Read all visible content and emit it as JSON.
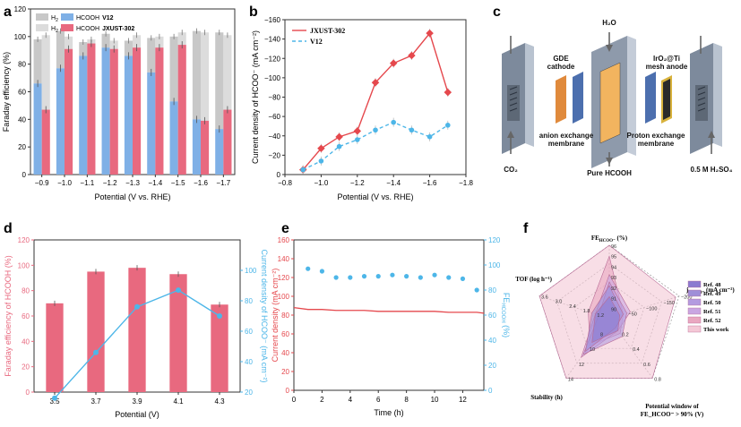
{
  "panels": {
    "a": {
      "letter": "a"
    },
    "b": {
      "letter": "b"
    },
    "c": {
      "letter": "c"
    },
    "d": {
      "letter": "d"
    },
    "e": {
      "letter": "e"
    },
    "f": {
      "letter": "f"
    }
  },
  "colors": {
    "pink": "#e8697f",
    "blue": "#7fb0e6",
    "gray": "#c8c8c8",
    "lightgray": "#dcdcdc",
    "red": "#e5484d",
    "sky": "#4db6e8",
    "purple": "#9c7fd8"
  },
  "chart_data": [
    {
      "panel": "a",
      "type": "bar",
      "xlabel": "Potential (V vs. RHE)",
      "ylabel": "Faraday efficiency (%)",
      "categories": [
        "−0.9",
        "−1.0",
        "−1.1",
        "−1.2",
        "−1.3",
        "−1.4",
        "−1.5",
        "−1.6",
        "−1.7"
      ],
      "ylim": [
        0,
        120
      ],
      "yticks": [
        "0",
        "20",
        "40",
        "60",
        "80",
        "100",
        "120"
      ],
      "legend": [
        {
          "prefix": "H",
          "sub": "2",
          "suffix": "",
          "bold": ""
        },
        {
          "prefix": "HCOOH",
          "sub": "",
          "suffix": "",
          "bold": "V12"
        },
        {
          "prefix": "H",
          "sub": "2",
          "suffix": "",
          "bold": ""
        },
        {
          "prefix": "HCOOH",
          "sub": "",
          "suffix": "",
          "bold": "JXUST-302"
        }
      ],
      "series": [
        {
          "name": "HCOOH V12",
          "hcooh": [
            66,
            77,
            86,
            92,
            86,
            74,
            53,
            40,
            33
          ],
          "total": [
            98,
            104,
            96,
            102,
            97,
            99,
            100,
            104,
            103
          ]
        },
        {
          "name": "HCOOH JXUST-302",
          "hcooh": [
            47,
            91,
            95,
            91,
            92,
            92,
            94,
            39,
            47
          ],
          "total": [
            101,
            100,
            98,
            97,
            101,
            100,
            103,
            103,
            101
          ]
        }
      ]
    },
    {
      "panel": "b",
      "type": "line",
      "xlabel": "Potential (V vs. RHE)",
      "ylabel": "Current density of HCOO⁻ (mA cm⁻²)",
      "xlim": [
        -0.8,
        -1.8
      ],
      "ylim": [
        0,
        -160
      ],
      "xticks": [
        "−0.8",
        "−1.0",
        "−1.2",
        "−1.4",
        "−1.6",
        "−1.8"
      ],
      "yticks": [
        "0",
        "−20",
        "−40",
        "−60",
        "−80",
        "−100",
        "−120",
        "−140",
        "−160"
      ],
      "series": [
        {
          "name": "JXUST-302",
          "x": [
            -0.9,
            -1.0,
            -1.1,
            -1.2,
            -1.3,
            -1.4,
            -1.5,
            -1.6,
            -1.7
          ],
          "y": [
            -5,
            -27,
            -39,
            -45,
            -95,
            -115,
            -123,
            -146,
            -85
          ]
        },
        {
          "name": "V12",
          "x": [
            -0.9,
            -1.0,
            -1.1,
            -1.2,
            -1.3,
            -1.4,
            -1.5,
            -1.6,
            -1.7
          ],
          "y": [
            -5,
            -14,
            -29,
            -36,
            -46,
            -54,
            -46,
            -39,
            -51
          ]
        }
      ]
    },
    {
      "panel": "d",
      "type": "bar",
      "xlabel": "Potential (V)",
      "ylabel": "Faraday efficiency of HCOOH (%)",
      "ylabel2": "Current density of HCOO⁻ (mA cm⁻²)",
      "categories": [
        "3.5",
        "3.7",
        "3.9",
        "4.1",
        "4.3"
      ],
      "ylim": [
        0,
        120
      ],
      "y2lim": [
        20,
        120
      ],
      "yticks": [
        "0",
        "20",
        "40",
        "60",
        "80",
        "100",
        "120"
      ],
      "y2ticks": [
        "20",
        "40",
        "60",
        "80",
        "100"
      ],
      "bar_values": [
        70,
        95,
        98,
        93,
        69
      ],
      "line_values": [
        16,
        46,
        76,
        87,
        70
      ]
    },
    {
      "panel": "e",
      "type": "scatter",
      "xlabel": "Time (h)",
      "ylabel": "Current density (mA cm⁻²)",
      "ylabel2": "FE (%)",
      "ylabel2_sub": "HCOOH",
      "xlim": [
        0,
        13.5
      ],
      "ylim": [
        0,
        160
      ],
      "y2lim": [
        0,
        120
      ],
      "xticks": [
        "0",
        "2",
        "4",
        "6",
        "8",
        "10",
        "12"
      ],
      "yticks": [
        "0",
        "20",
        "40",
        "60",
        "80",
        "100",
        "120",
        "140",
        "160"
      ],
      "y2ticks": [
        "0",
        "20",
        "40",
        "60",
        "80",
        "100",
        "120"
      ],
      "current": {
        "x": [
          0,
          1,
          2,
          3,
          4,
          5,
          6,
          7,
          8,
          9,
          10,
          11,
          12,
          13,
          13.5
        ],
        "y": [
          88,
          86,
          86,
          85,
          85,
          85,
          84,
          84,
          84,
          84,
          84,
          83,
          83,
          83,
          82
        ]
      },
      "fe": {
        "x": [
          1,
          2,
          3,
          4,
          5,
          6,
          7,
          8,
          9,
          10,
          11,
          12,
          13
        ],
        "y": [
          97,
          95,
          90,
          90,
          91,
          91,
          92,
          91,
          90,
          92,
          90,
          89,
          80
        ]
      }
    },
    {
      "panel": "f",
      "type": "radar",
      "axes": [
        {
          "label": "FE",
          "sub": "HCOO⁻",
          "tail": " (%)",
          "ticks": [
            "96",
            "95",
            "94",
            "93",
            "92",
            "91",
            "90"
          ]
        },
        {
          "label": "j",
          "sub": "HCOO⁻",
          "tail": " (mA cm⁻²)",
          "ticks": [
            "−200",
            "−150",
            "−100",
            "−50"
          ]
        },
        {
          "label": "Potential window of",
          "sub": "",
          "tail": "FE_HCOO⁻ > 90% (V)",
          "ticks": [
            "0.8",
            "0.6",
            "0.4",
            "0.2"
          ]
        },
        {
          "label": "Stability (h)",
          "sub": "",
          "tail": "",
          "ticks": [
            "14",
            "12",
            "10",
            "8"
          ]
        },
        {
          "label": "TOF (log h⁻¹)",
          "sub": "",
          "tail": "",
          "ticks": [
            "3.6",
            "3.0",
            "2.4",
            "1.8",
            "1.2"
          ]
        }
      ],
      "legend": [
        "Ref. 48",
        "Ref. 49",
        "Ref. 50",
        "Ref. 51",
        "Ref. 52",
        "This work"
      ],
      "series": [
        {
          "name": "This work",
          "values": [
            1.0,
            0.95,
            1.0,
            1.0,
            1.0
          ]
        },
        {
          "name": "Ref. 52",
          "values": [
            0.85,
            0.2,
            0.25,
            0.45,
            0.3
          ]
        },
        {
          "name": "Ref. 51",
          "values": [
            0.6,
            0.3,
            0.2,
            0.65,
            0.2
          ]
        },
        {
          "name": "Ref. 50",
          "values": [
            0.5,
            0.25,
            0.3,
            0.6,
            0.15
          ]
        },
        {
          "name": "Ref. 49",
          "values": [
            0.45,
            0.2,
            0.15,
            0.55,
            0.25
          ]
        },
        {
          "name": "Ref. 48",
          "values": [
            0.3,
            0.15,
            0.2,
            0.4,
            0.2
          ]
        }
      ]
    }
  ],
  "diagram_c": {
    "h2o": "H₂O",
    "gde": "GDE",
    "cathode": "cathode",
    "iro2_1": "IrO₂@Ti",
    "iro2_2": "mesh anode",
    "aem_1": "anion exchange",
    "aem_2": "membrane",
    "pem_1": "Proton exchange",
    "pem_2": "membrane",
    "co2": "CO₂",
    "pure": "Pure HCOOH",
    "acid": "0.5 M H₂SO₄"
  }
}
